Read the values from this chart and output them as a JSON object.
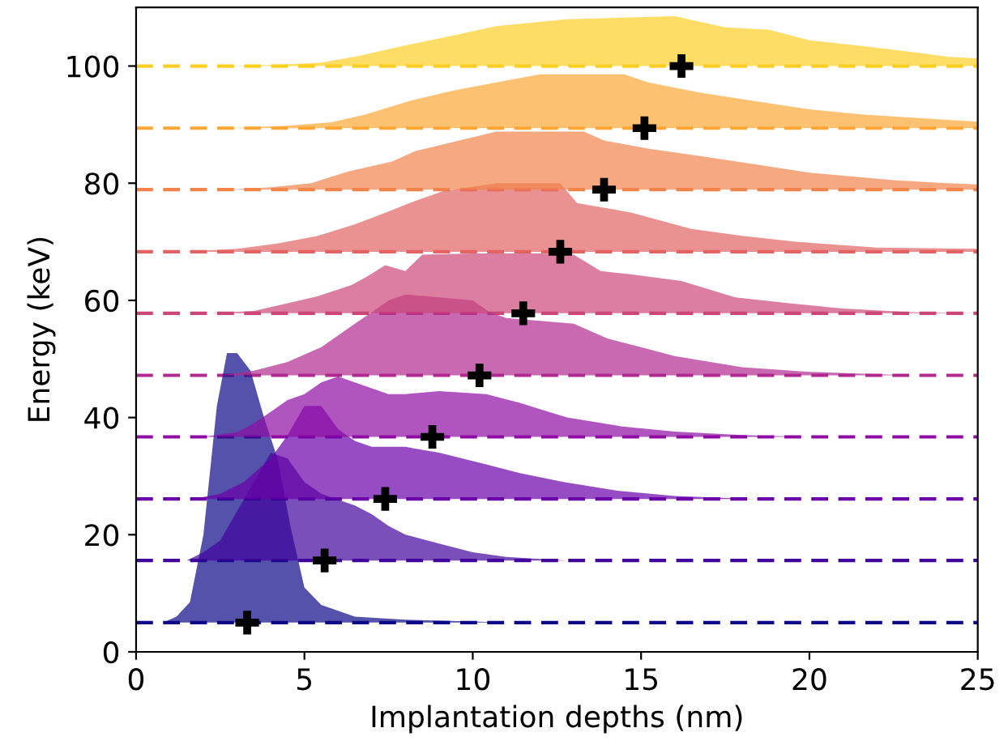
{
  "chart_data": {
    "type": "area",
    "xlabel": "Implantation depths (nm)",
    "ylabel": "Energy (keV)",
    "xlim": [
      0,
      25
    ],
    "ylim": [
      0,
      110
    ],
    "xticks": [
      0,
      5,
      10,
      15,
      20,
      25
    ],
    "yticks": [
      0,
      20,
      40,
      60,
      80,
      100
    ],
    "grid": false,
    "series": [
      {
        "color": "#0d0887",
        "x": [
          0.8,
          1.2,
          1.6,
          2.0,
          2.4,
          2.7,
          3.0,
          3.4,
          3.8,
          4.2,
          4.6,
          5.0,
          5.5,
          6.5,
          8,
          10,
          11
        ],
        "values": [
          5,
          6,
          8.5,
          20,
          42,
          51,
          51,
          48,
          40,
          33,
          21,
          11,
          8,
          6,
          5.5,
          5.2,
          5
        ]
      },
      {
        "color": "#41049d",
        "x": [
          1.5,
          2.0,
          2.5,
          3.0,
          3.5,
          4.0,
          4.5,
          5.0,
          5.5,
          6.0,
          6.5,
          7.0,
          7.5,
          8.0,
          9,
          10,
          11,
          12.8
        ],
        "values": [
          15.6,
          17,
          19,
          24,
          29,
          34,
          33,
          29,
          27,
          26,
          25,
          23.5,
          21.5,
          20,
          18.5,
          17,
          16.2,
          15.6
        ]
      },
      {
        "color": "#6a00a8",
        "x": [
          1.7,
          2.5,
          3.2,
          4.0,
          4.5,
          5.0,
          5.5,
          6.0,
          6.5,
          7.0,
          8.0,
          9.0,
          10.4,
          11.4,
          12.7,
          14.3,
          16,
          18.4
        ],
        "values": [
          26.1,
          27,
          29,
          33,
          37,
          42,
          42,
          38,
          36,
          35,
          35,
          34,
          32,
          30.5,
          29,
          27.5,
          26.6,
          26.1
        ]
      },
      {
        "color": "#8f0da4",
        "x": [
          2,
          3,
          3.5,
          4,
          4.5,
          5,
          5.5,
          6,
          6.5,
          7,
          7.5,
          8,
          9,
          10.4,
          11.4,
          12.8,
          14.4,
          16,
          18,
          19.9
        ],
        "values": [
          36.7,
          37.5,
          39,
          41,
          43,
          44,
          46,
          47,
          46,
          45,
          44,
          44,
          44.5,
          44,
          42.5,
          40,
          38.5,
          37.6,
          37,
          36.7
        ]
      },
      {
        "color": "#b12a90",
        "x": [
          2.5,
          3.5,
          4.5,
          5.5,
          6.0,
          6.5,
          7.0,
          7.5,
          8,
          9,
          10,
          10.5,
          11,
          12,
          13,
          14,
          15,
          16,
          18,
          20,
          23
        ],
        "values": [
          47.2,
          48,
          49.5,
          52,
          54,
          56,
          58,
          60,
          61,
          60.5,
          60,
          58,
          57,
          56.5,
          56,
          53.5,
          52,
          50.5,
          48.6,
          47.8,
          47.2
        ]
      },
      {
        "color": "#cc4778",
        "x": [
          2.2,
          3.5,
          4.5,
          5.4,
          6.4,
          6.9,
          7.4,
          8,
          8.5,
          10,
          12,
          13,
          13.8,
          14.6,
          16.2,
          17.8,
          19.4,
          21,
          23,
          25
        ],
        "values": [
          57.8,
          58.2,
          59.5,
          60.7,
          62.6,
          64.2,
          66,
          65,
          67.8,
          68,
          68,
          67.8,
          65,
          64.5,
          63.3,
          60.5,
          59.5,
          58.6,
          58,
          57.8
        ]
      },
      {
        "color": "#e16462",
        "x": [
          1.4,
          3,
          4.2,
          5.4,
          6.5,
          7.2,
          8.3,
          9.1,
          10.7,
          12.6,
          13.1,
          14.7,
          16.5,
          18,
          19.6,
          22,
          25
        ],
        "values": [
          68.3,
          68.8,
          69.7,
          71,
          73,
          74.5,
          77,
          78.6,
          80,
          80,
          76.6,
          75,
          72.2,
          71,
          70,
          69,
          68.8
        ]
      },
      {
        "color": "#f2844b",
        "x": [
          2.7,
          4,
          5.2,
          6.3,
          7.6,
          8.3,
          9.4,
          10.7,
          13.3,
          13.9,
          15.2,
          16.8,
          18.4,
          20,
          22.5,
          24.1,
          25
        ],
        "values": [
          78.9,
          79.3,
          80,
          82,
          83.7,
          85.5,
          87,
          88.8,
          88.8,
          87.3,
          85.9,
          84.6,
          83.2,
          81.8,
          80.5,
          80,
          79.8
        ]
      },
      {
        "color": "#fca636",
        "x": [
          2.7,
          4.5,
          5.8,
          6.8,
          8.1,
          9.4,
          10.7,
          12,
          14.5,
          15.2,
          16.8,
          18.4,
          20,
          21.6,
          24.1,
          25
        ],
        "values": [
          89.4,
          89.8,
          90.4,
          91.7,
          94,
          95.8,
          97.2,
          98.6,
          98.6,
          97.2,
          95.4,
          94,
          92.6,
          91.7,
          90.8,
          90.5
        ]
      },
      {
        "color": "#fcce25",
        "x": [
          2.7,
          4.2,
          5.5,
          6.6,
          7.9,
          9.4,
          10.7,
          12.8,
          16,
          17.5,
          18.8,
          20,
          21.6,
          23.2,
          24.1,
          25
        ],
        "values": [
          100,
          100.2,
          100.6,
          101.7,
          103.4,
          105.2,
          106.8,
          108,
          108.5,
          106.6,
          106.2,
          104.4,
          103.4,
          102.3,
          101.6,
          101.3
        ]
      },
      {
        "type": "scatter",
        "marker": "cross",
        "color": "#000000",
        "x": [
          3.3,
          5.6,
          7.4,
          8.8,
          10.2,
          11.5,
          12.6,
          13.9,
          15.1,
          16.2
        ],
        "values": [
          5,
          15.6,
          26.1,
          36.7,
          47.2,
          57.8,
          68.3,
          78.9,
          89.4,
          100
        ]
      }
    ],
    "ref_lines": [
      {
        "axis": "y",
        "value": 5,
        "color": "#0d0887",
        "line_style": "dashed"
      },
      {
        "axis": "y",
        "value": 15.6,
        "color": "#41049d",
        "line_style": "dashed"
      },
      {
        "axis": "y",
        "value": 26.1,
        "color": "#6a00a8",
        "line_style": "dashed"
      },
      {
        "axis": "y",
        "value": 36.7,
        "color": "#8f0da4",
        "line_style": "dashed"
      },
      {
        "axis": "y",
        "value": 47.2,
        "color": "#b12a90",
        "line_style": "dashed"
      },
      {
        "axis": "y",
        "value": 57.8,
        "color": "#cc4778",
        "line_style": "dashed"
      },
      {
        "axis": "y",
        "value": 68.3,
        "color": "#e16462",
        "line_style": "dashed"
      },
      {
        "axis": "y",
        "value": 78.9,
        "color": "#f2844b",
        "line_style": "dashed"
      },
      {
        "axis": "y",
        "value": 89.4,
        "color": "#fca636",
        "line_style": "dashed"
      },
      {
        "axis": "y",
        "value": 100,
        "color": "#fcce25",
        "line_style": "dashed"
      }
    ]
  }
}
